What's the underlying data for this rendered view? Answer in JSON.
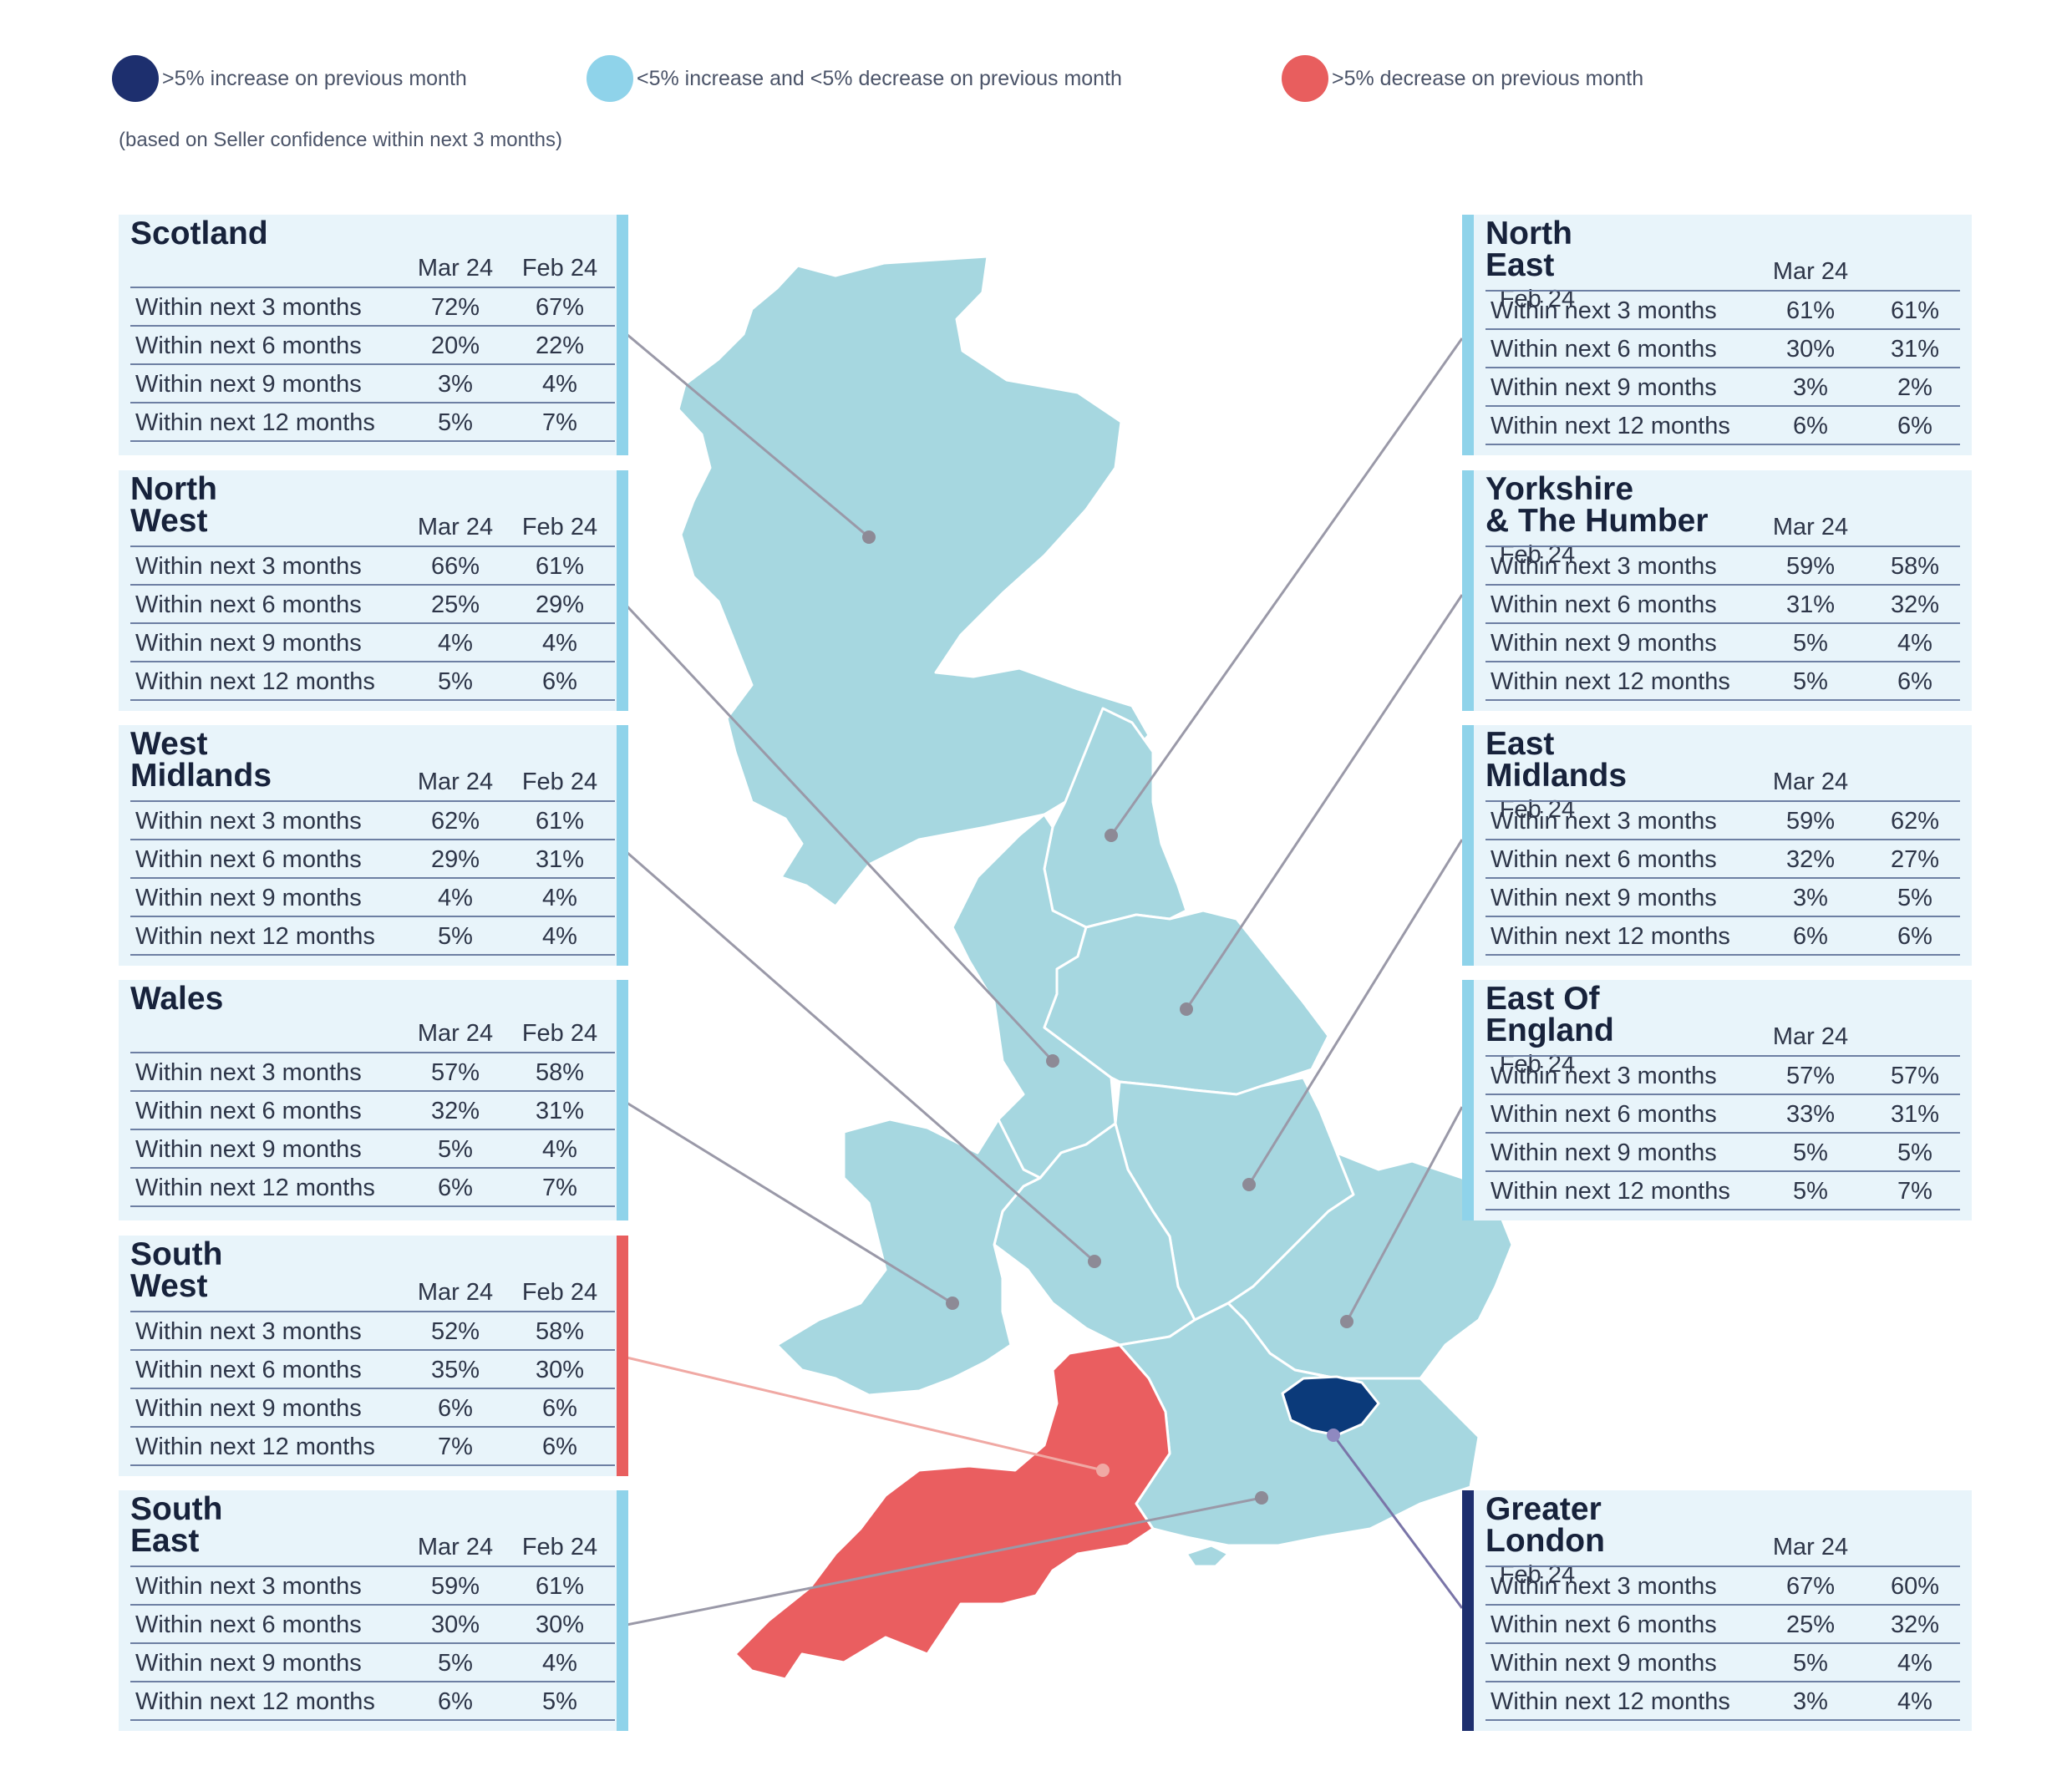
{
  "legend": {
    "items": [
      {
        "label": ">5% increase on previous month",
        "color": "#1d2f6e"
      },
      {
        "label": "<5% increase and <5% decrease on previous month",
        "color": "#8fd3ea"
      },
      {
        "label": ">5% decrease on previous month",
        "color": "#e85e5e"
      }
    ],
    "note": "(based on Seller confidence within next 3 months)"
  },
  "columns": [
    "Mar 24",
    "Feb 24"
  ],
  "colors": {
    "map_region": "#a6d7e0",
    "increase": "#0b3a7a",
    "decrease": "#e85e5e",
    "neutral_bar": "#8fd3ea",
    "increase_bar": "#1d2f6e",
    "panel_bg": "#e8f4fa",
    "leader_line": "#9a99a8"
  },
  "regions": {
    "scotland": {
      "title": "Scotland",
      "status": "neutral",
      "rows": [
        {
          "label": "Within next 3 months",
          "mar": "72%",
          "feb": "67%"
        },
        {
          "label": "Within next 6 months",
          "mar": "20%",
          "feb": "22%"
        },
        {
          "label": "Within next 9 months",
          "mar": "3%",
          "feb": "4%"
        },
        {
          "label": "Within next 12 months",
          "mar": "5%",
          "feb": "7%"
        }
      ]
    },
    "north_west": {
      "title": "North\nWest",
      "status": "neutral",
      "rows": [
        {
          "label": "Within next 3 months",
          "mar": "66%",
          "feb": "61%"
        },
        {
          "label": "Within next 6 months",
          "mar": "25%",
          "feb": "29%"
        },
        {
          "label": "Within next 9 months",
          "mar": "4%",
          "feb": "4%"
        },
        {
          "label": "Within next 12 months",
          "mar": "5%",
          "feb": "6%"
        }
      ]
    },
    "west_midlands": {
      "title": "West\nMidlands",
      "status": "neutral",
      "rows": [
        {
          "label": "Within next 3 months",
          "mar": "62%",
          "feb": "61%"
        },
        {
          "label": "Within next 6 months",
          "mar": "29%",
          "feb": "31%"
        },
        {
          "label": "Within next 9 months",
          "mar": "4%",
          "feb": "4%"
        },
        {
          "label": "Within next 12 months",
          "mar": "5%",
          "feb": "4%"
        }
      ]
    },
    "wales": {
      "title": "Wales",
      "status": "neutral",
      "rows": [
        {
          "label": "Within next 3 months",
          "mar": "57%",
          "feb": "58%"
        },
        {
          "label": "Within next 6 months",
          "mar": "32%",
          "feb": "31%"
        },
        {
          "label": "Within next 9 months",
          "mar": "5%",
          "feb": "4%"
        },
        {
          "label": "Within next 12 months",
          "mar": "6%",
          "feb": "7%"
        }
      ]
    },
    "south_west": {
      "title": "South\nWest",
      "status": "decrease",
      "rows": [
        {
          "label": "Within next 3 months",
          "mar": "52%",
          "feb": "58%"
        },
        {
          "label": "Within next 6 months",
          "mar": "35%",
          "feb": "30%"
        },
        {
          "label": "Within next 9 months",
          "mar": "6%",
          "feb": "6%"
        },
        {
          "label": "Within next 12 months",
          "mar": "7%",
          "feb": "6%"
        }
      ]
    },
    "south_east": {
      "title": "South\nEast",
      "status": "neutral",
      "rows": [
        {
          "label": "Within next 3 months",
          "mar": "59%",
          "feb": "61%"
        },
        {
          "label": "Within next 6 months",
          "mar": "30%",
          "feb": "30%"
        },
        {
          "label": "Within next 9 months",
          "mar": "5%",
          "feb": "4%"
        },
        {
          "label": "Within next 12 months",
          "mar": "6%",
          "feb": "5%"
        }
      ]
    },
    "north_east": {
      "title": "North\nEast",
      "status": "neutral",
      "rows": [
        {
          "label": "Within next 3 months",
          "mar": "61%",
          "feb": "61%"
        },
        {
          "label": "Within next 6 months",
          "mar": "30%",
          "feb": "31%"
        },
        {
          "label": "Within next 9 months",
          "mar": "3%",
          "feb": "2%"
        },
        {
          "label": "Within next 12 months",
          "mar": "6%",
          "feb": "6%"
        }
      ]
    },
    "yorkshire": {
      "title": "Yorkshire\n& The Humber",
      "status": "neutral",
      "rows": [
        {
          "label": "Within next 3 months",
          "mar": "59%",
          "feb": "58%"
        },
        {
          "label": "Within next 6 months",
          "mar": "31%",
          "feb": "32%"
        },
        {
          "label": "Within next 9 months",
          "mar": "5%",
          "feb": "4%"
        },
        {
          "label": "Within next 12 months",
          "mar": "5%",
          "feb": "6%"
        }
      ]
    },
    "east_midlands": {
      "title": "East\nMidlands",
      "status": "neutral",
      "rows": [
        {
          "label": "Within next 3 months",
          "mar": "59%",
          "feb": "62%"
        },
        {
          "label": "Within next 6 months",
          "mar": "32%",
          "feb": "27%"
        },
        {
          "label": "Within next 9 months",
          "mar": "3%",
          "feb": "5%"
        },
        {
          "label": "Within next 12 months",
          "mar": "6%",
          "feb": "6%"
        }
      ]
    },
    "east_of_england": {
      "title": "East Of\nEngland",
      "status": "neutral",
      "rows": [
        {
          "label": "Within next 3 months",
          "mar": "57%",
          "feb": "57%"
        },
        {
          "label": "Within next 6 months",
          "mar": "33%",
          "feb": "31%"
        },
        {
          "label": "Within next 9 months",
          "mar": "5%",
          "feb": "5%"
        },
        {
          "label": "Within next 12 months",
          "mar": "5%",
          "feb": "7%"
        }
      ]
    },
    "greater_london": {
      "title": "Greater\nLondon",
      "status": "increase",
      "rows": [
        {
          "label": "Within next 3 months",
          "mar": "67%",
          "feb": "60%"
        },
        {
          "label": "Within next 6 months",
          "mar": "25%",
          "feb": "32%"
        },
        {
          "label": "Within next 9 months",
          "mar": "5%",
          "feb": "4%"
        },
        {
          "label": "Within next 12 months",
          "mar": "3%",
          "feb": "4%"
        }
      ]
    }
  }
}
